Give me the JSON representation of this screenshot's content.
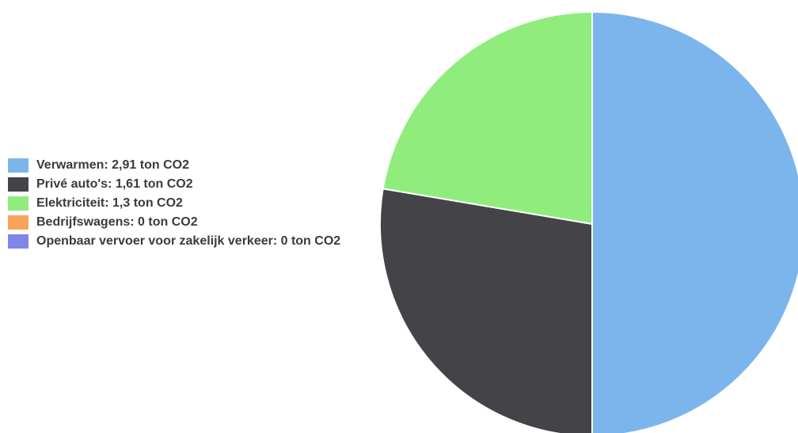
{
  "chart_data": {
    "type": "pie",
    "unit": "ton CO2",
    "series": [
      {
        "name": "Verwarmen",
        "value": 2.91,
        "label": "Verwarmen: 2,91 ton CO2",
        "color": "#7cb5ec"
      },
      {
        "name": "Privé auto's",
        "value": 1.61,
        "label": "Privé auto's: 1,61 ton CO2",
        "color": "#434348"
      },
      {
        "name": "Elektriciteit",
        "value": 1.3,
        "label": "Elektriciteit: 1,3 ton CO2",
        "color": "#90ed7d"
      },
      {
        "name": "Bedrijfswagens",
        "value": 0,
        "label": "Bedrijfswagens: 0 ton CO2",
        "color": "#f7a35c"
      },
      {
        "name": "Openbaar vervoer voor zakelijk verkeer",
        "value": 0,
        "label": "Openbaar vervoer voor zakelijk verkeer: 0 ton CO2",
        "color": "#8085e9"
      }
    ],
    "start_angle_deg": 0,
    "direction": "clockwise",
    "legend_position": "left"
  }
}
